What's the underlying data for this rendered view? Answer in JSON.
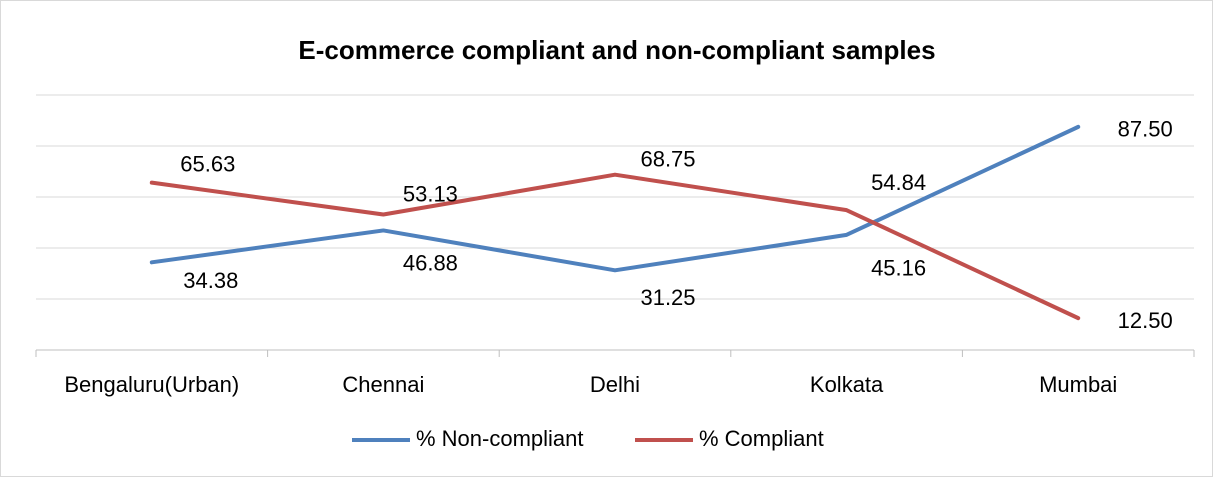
{
  "chart_data": {
    "type": "line",
    "title": "E-commerce compliant and non-compliant samples",
    "categories": [
      "Bengaluru(Urban)",
      "Chennai",
      "Delhi",
      "Kolkata",
      "Mumbai"
    ],
    "series": [
      {
        "name": "% Non-compliant",
        "color": "#4f81bd",
        "values": [
          34.38,
          46.88,
          31.25,
          45.16,
          87.5
        ],
        "value_labels": [
          "34.38",
          "46.88",
          "31.25",
          "45.16",
          "87.50"
        ]
      },
      {
        "name": "% Compliant",
        "color": "#c0504d",
        "values": [
          65.63,
          53.13,
          68.75,
          54.84,
          12.5
        ],
        "value_labels": [
          "65.63",
          "53.13",
          "68.75",
          "54.84",
          "12.50"
        ]
      }
    ],
    "ylim": [
      0,
      100
    ],
    "yticks": [
      0,
      20,
      40,
      60,
      80,
      100
    ],
    "grid": true,
    "legend": "bottom"
  }
}
